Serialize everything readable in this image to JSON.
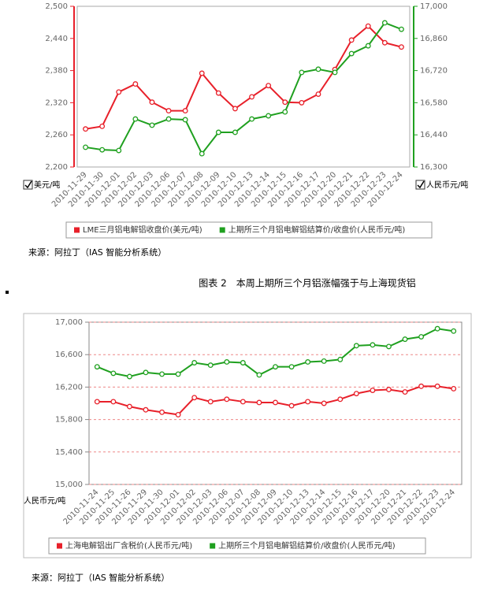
{
  "chart_data": [
    {
      "type": "line",
      "y_axis_label": "美元/吨",
      "y2_axis_label": "人民币元/吨",
      "categories": [
        "2010-11-29",
        "2010-11-30",
        "2010-12-01",
        "2010-12-02",
        "2010-12-03",
        "2010-12-06",
        "2010-12-07",
        "2010-12-08",
        "2010-12-09",
        "2010-12-10",
        "2010-12-13",
        "2010-12-14",
        "2010-12-15",
        "2010-12-16",
        "2010-12-17",
        "2010-12-20",
        "2010-12-21",
        "2010-12-22",
        "2010-12-23",
        "2010-12-24"
      ],
      "series": [
        {
          "name": "LME三月铝电解铝收盘价(美元/吨)",
          "color": "#e8202a",
          "values": [
            2271,
            2276,
            2340,
            2355,
            2321,
            2305,
            2305,
            2375,
            2338,
            2309,
            2331,
            2352,
            2321,
            2320,
            2336,
            2382,
            2437,
            2463,
            2432,
            2424
          ]
        },
        {
          "name": "上期所三个月铝电解铝结算价/收盘价(人民币元/吨)",
          "color": "#1fa01f",
          "axis": "y2",
          "values": [
            16386,
            16375,
            16372,
            16509,
            16482,
            16509,
            16506,
            16358,
            16451,
            16451,
            16509,
            16523,
            16540,
            16712,
            16726,
            16712,
            16794,
            16828,
            16928,
            16900
          ]
        }
      ],
      "ylim": [
        2200,
        2500
      ],
      "yticks": [
        {
          "value": 2200,
          "label": "2,200"
        },
        {
          "value": 2260,
          "label": "2,260"
        },
        {
          "value": 2320,
          "label": "2,320"
        },
        {
          "value": 2380,
          "label": "2,380"
        },
        {
          "value": 2440,
          "label": "2,440"
        },
        {
          "value": 2500,
          "label": "2,500"
        }
      ],
      "y2lim": [
        16300,
        17000
      ],
      "y2ticks": [
        {
          "value": 16300,
          "label": "16,300"
        },
        {
          "value": 16440,
          "label": "16,440"
        },
        {
          "value": 16580,
          "label": "16,580"
        },
        {
          "value": 16720,
          "label": "16,720"
        },
        {
          "value": 16860,
          "label": "16,860"
        },
        {
          "value": 17000,
          "label": "17,000"
        }
      ],
      "grid": false,
      "legend": "bottom"
    },
    {
      "type": "line",
      "y_axis_label": "人民币元/吨",
      "categories": [
        "2010-11-24",
        "2010-11-25",
        "2010-11-26",
        "2010-11-29",
        "2010-11-30",
        "2010-12-01",
        "2010-12-02",
        "2010-12-03",
        "2010-12-06",
        "2010-12-07",
        "2010-12-08",
        "2010-12-09",
        "2010-12-10",
        "2010-12-13",
        "2010-12-14",
        "2010-12-15",
        "2010-12-16",
        "2010-12-17",
        "2010-12-20",
        "2010-12-21",
        "2010-12-22",
        "2010-12-23",
        "2010-12-24"
      ],
      "series": [
        {
          "name": "上海电解铝出厂含税价(人民币元/吨)",
          "color": "#e8202a",
          "values": [
            16020,
            16020,
            15960,
            15920,
            15890,
            15860,
            16070,
            16020,
            16050,
            16020,
            16010,
            16010,
            15970,
            16020,
            16000,
            16050,
            16120,
            16160,
            16170,
            16140,
            16210,
            16210,
            16180
          ]
        },
        {
          "name": "上期所三个月铝电解铝结算价/收盘价(人民币元/吨)",
          "color": "#1fa01f",
          "values": [
            16450,
            16370,
            16330,
            16380,
            16360,
            16360,
            16500,
            16470,
            16510,
            16500,
            16350,
            16450,
            16450,
            16510,
            16520,
            16540,
            16710,
            16720,
            16700,
            16790,
            16820,
            16920,
            16890
          ]
        }
      ],
      "ylim": [
        15000,
        17000
      ],
      "yticks": [
        {
          "value": 15000,
          "label": "15,000"
        },
        {
          "value": 15400,
          "label": "15,400"
        },
        {
          "value": 15800,
          "label": "15,800"
        },
        {
          "value": 16200,
          "label": "16,200"
        },
        {
          "value": 16600,
          "label": "16,600"
        },
        {
          "value": 17000,
          "label": "17,000"
        }
      ],
      "grid": true,
      "legend": "bottom"
    }
  ],
  "source_1": "来源：阿拉丁（IAS 智能分析系统）",
  "caption": "图表 2　本周上期所三个月铝涨幅强于与上海现货铝",
  "source_2": "来源：阿拉丁（IAS 智能分析系统）"
}
